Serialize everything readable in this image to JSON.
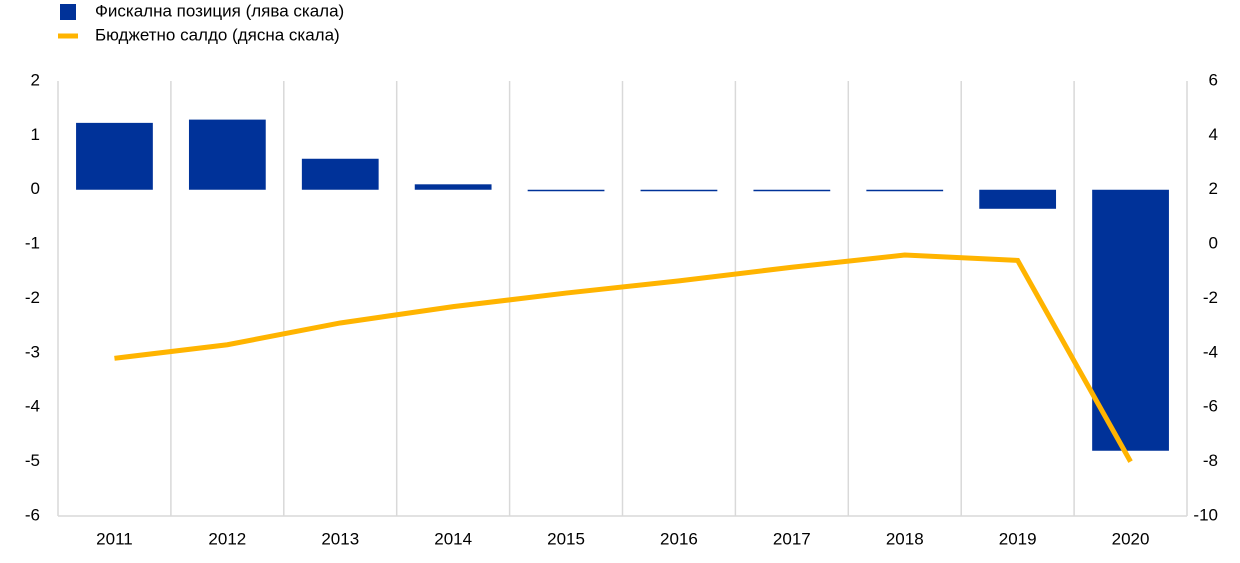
{
  "chart_data": {
    "type": "bar-line",
    "categories": [
      "2011",
      "2012",
      "2013",
      "2014",
      "2015",
      "2016",
      "2017",
      "2018",
      "2019",
      "2020"
    ],
    "series": [
      {
        "name": "Фискална позиция (лява скала)",
        "type": "bar",
        "color": "#003299",
        "values": [
          1.23,
          1.29,
          0.57,
          0.1,
          -0.02,
          -0.02,
          -0.02,
          -0.02,
          -0.35,
          -4.8
        ]
      },
      {
        "name": "Бюджетно салдо (дясна скала)",
        "type": "line",
        "color": "#ffb400",
        "axis": "y2",
        "values": [
          -4.2,
          -3.7,
          -2.9,
          -2.3,
          -1.8,
          -1.35,
          -0.85,
          -0.4,
          -0.6,
          -8.0
        ]
      }
    ],
    "ylim": [
      -6,
      2
    ],
    "yticks": [
      -6,
      -5,
      -4,
      -3,
      -2,
      -1,
      0,
      1,
      2
    ],
    "y2lim": [
      -10,
      6
    ],
    "y2ticks": [
      -10,
      -8,
      -6,
      -4,
      -2,
      0,
      2,
      4,
      6
    ],
    "grid": true
  }
}
